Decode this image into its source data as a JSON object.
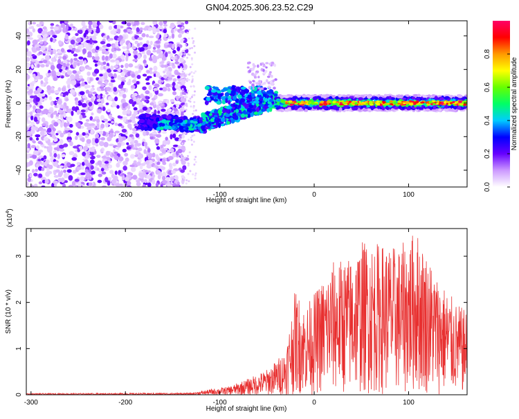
{
  "title": "GN04.2025.306.23.52.C29",
  "chart_data": [
    {
      "type": "heatmap",
      "xlabel": "Height of straight line (km)",
      "ylabel": "Frequency (Hz)",
      "xlim": [
        -305,
        162
      ],
      "ylim": [
        -50,
        49
      ],
      "xticks": [
        -300,
        -200,
        -100,
        0,
        100
      ],
      "yticks": [
        -40,
        -20,
        0,
        20,
        40
      ],
      "colorbar": {
        "label": "Normalized spectral amplitude",
        "range": [
          0,
          1
        ],
        "ticks": [
          "0.0",
          "0.2",
          "0.4",
          "0.6",
          "0.8"
        ],
        "colormap": [
          "#ffffff",
          "#cc99ff",
          "#6600ff",
          "#0000ff",
          "#00ccff",
          "#00ff66",
          "#66ff00",
          "#ffff00",
          "#ff9900",
          "#ff0000",
          "#ff0066"
        ]
      },
      "regions": [
        {
          "x": [
            -305,
            -135
          ],
          "y": [
            -50,
            49
          ],
          "amplitude_range": [
            0.02,
            0.3
          ],
          "description": "scattered low-amplitude noise"
        },
        {
          "x": [
            -185,
            -120
          ],
          "y": [
            -16,
            -8
          ],
          "amplitude_range": [
            0.2,
            0.4
          ]
        },
        {
          "x": [
            -120,
            -40
          ],
          "y": [
            -14,
            12
          ],
          "amplitude_range": [
            0.2,
            0.5
          ]
        },
        {
          "x": [
            -40,
            162
          ],
          "y": [
            -3,
            3
          ],
          "amplitude_range": [
            0.3,
            1.0
          ],
          "description": "strong band near 0 Hz"
        }
      ]
    },
    {
      "type": "line",
      "xlabel": "Height of straight line (km)",
      "ylabel": "SNR (10 * v/v)",
      "y_multiplier_label": "(x10",
      "y_multiplier_exp": "4",
      "y_multiplier_close": ")",
      "xlim": [
        -305,
        162
      ],
      "ylim": [
        0,
        3.6
      ],
      "xticks": [
        -300,
        -200,
        -100,
        0,
        100
      ],
      "yticks": [
        0,
        1,
        2,
        3
      ],
      "color": "#e83030",
      "envelope": [
        {
          "x": -305,
          "y": 0.03
        },
        {
          "x": -130,
          "y": 0.04
        },
        {
          "x": -110,
          "y": 0.12
        },
        {
          "x": -90,
          "y": 0.18
        },
        {
          "x": -70,
          "y": 0.35
        },
        {
          "x": -50,
          "y": 0.55
        },
        {
          "x": -40,
          "y": 0.75
        },
        {
          "x": -30,
          "y": 1.0
        },
        {
          "x": -20,
          "y": 2.3
        },
        {
          "x": -10,
          "y": 1.9
        },
        {
          "x": 0,
          "y": 2.2
        },
        {
          "x": 20,
          "y": 2.9
        },
        {
          "x": 40,
          "y": 3.0
        },
        {
          "x": 50,
          "y": 3.35
        },
        {
          "x": 70,
          "y": 3.3
        },
        {
          "x": 90,
          "y": 3.2
        },
        {
          "x": 108,
          "y": 3.6
        },
        {
          "x": 130,
          "y": 2.6
        },
        {
          "x": 150,
          "y": 2.0
        },
        {
          "x": 162,
          "y": 1.8
        }
      ]
    }
  ]
}
